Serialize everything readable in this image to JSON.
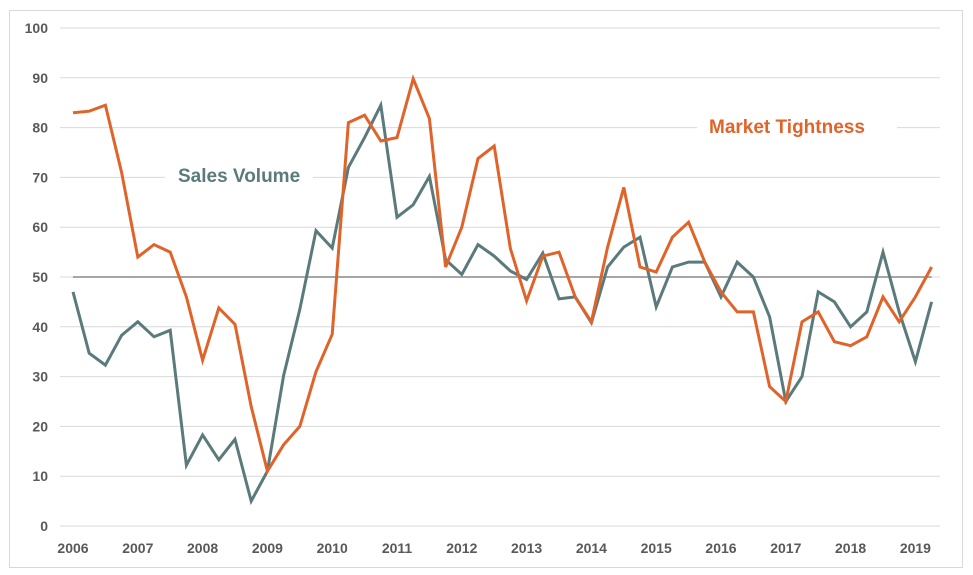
{
  "chart_data": {
    "type": "line",
    "title": "",
    "xlabel": "",
    "ylabel": "",
    "ylim": [
      0,
      100
    ],
    "yticks": [
      "0",
      "10",
      "20",
      "30",
      "40",
      "50",
      "60",
      "70",
      "80",
      "90",
      "100"
    ],
    "xticks": [
      "2006",
      "2007",
      "2008",
      "2009",
      "2010",
      "2011",
      "2012",
      "2013",
      "2014",
      "2015",
      "2016",
      "2017",
      "2018",
      "2019"
    ],
    "x_start": 2006,
    "x_step": 0.25,
    "grid": true,
    "reference_line": 50,
    "legend": "inline labels",
    "series": [
      {
        "name": "Market Tightness",
        "color": "#e0632a",
        "values": [
          83,
          83.3,
          84.5,
          71,
          54,
          56.5,
          55,
          46,
          33.3,
          43.8,
          40.5,
          24,
          11,
          16.3,
          20,
          31,
          38.5,
          81,
          82.5,
          77.3,
          78,
          89.8,
          81.8,
          52,
          60,
          73.8,
          76.3,
          55.7,
          45.2,
          54.2,
          55,
          46,
          41,
          56,
          68,
          52,
          51,
          58,
          61,
          53,
          47,
          43,
          43,
          28,
          25,
          41,
          43,
          37,
          36.2,
          38,
          46,
          41,
          46,
          52
        ]
      },
      {
        "name": "Sales Volume",
        "color": "#5a7a7c",
        "values": [
          47,
          34.7,
          32.3,
          38.3,
          41,
          38,
          39.3,
          12.2,
          18.3,
          13.3,
          17.4,
          5,
          11,
          30.2,
          43.5,
          59.3,
          55.8,
          72,
          78,
          84.5,
          62,
          64.5,
          70.2,
          53.5,
          50.5,
          56.5,
          54.2,
          51.2,
          49.5,
          54.8,
          45.6,
          46,
          40.8,
          52,
          56,
          58,
          44,
          52,
          53,
          53,
          46,
          53,
          50,
          42,
          25,
          30,
          47,
          45,
          40,
          43,
          55,
          43,
          33,
          45
        ]
      }
    ],
    "colors": {
      "grid": "#d9d9d9",
      "reference": "#a6a6a6",
      "tick": "#595959"
    }
  }
}
